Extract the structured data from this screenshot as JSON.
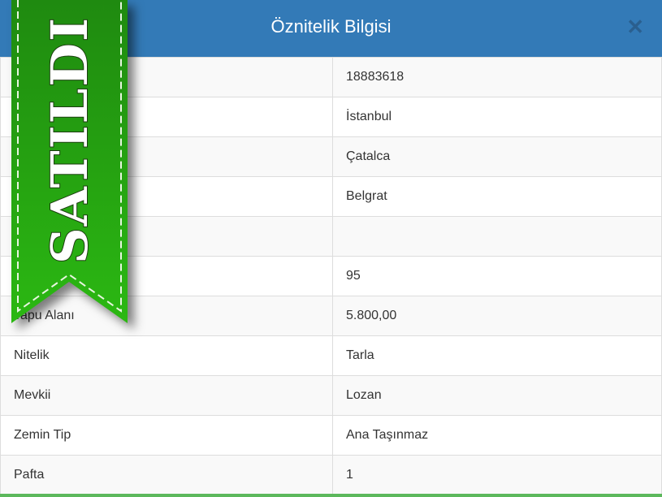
{
  "dialog": {
    "title": "Öznitelik Bilgisi",
    "close_icon": "close-icon"
  },
  "ribbon": {
    "text": "SATILDI",
    "color": "#22a00f"
  },
  "rows": [
    {
      "label": "",
      "value": "18883618"
    },
    {
      "label": "",
      "value": "İstanbul"
    },
    {
      "label": "",
      "value": "Çatalca"
    },
    {
      "label": "",
      "value": "Belgrat"
    },
    {
      "label": "",
      "value": ""
    },
    {
      "label": "",
      "value": "95"
    },
    {
      "label": "Tapu Alanı",
      "value": "5.800,00"
    },
    {
      "label": "Nitelik",
      "value": "Tarla"
    },
    {
      "label": "Mevkii",
      "value": "Lozan"
    },
    {
      "label": "Zemin Tip",
      "value": "Ana Taşınmaz"
    },
    {
      "label": "Pafta",
      "value": "1"
    }
  ]
}
